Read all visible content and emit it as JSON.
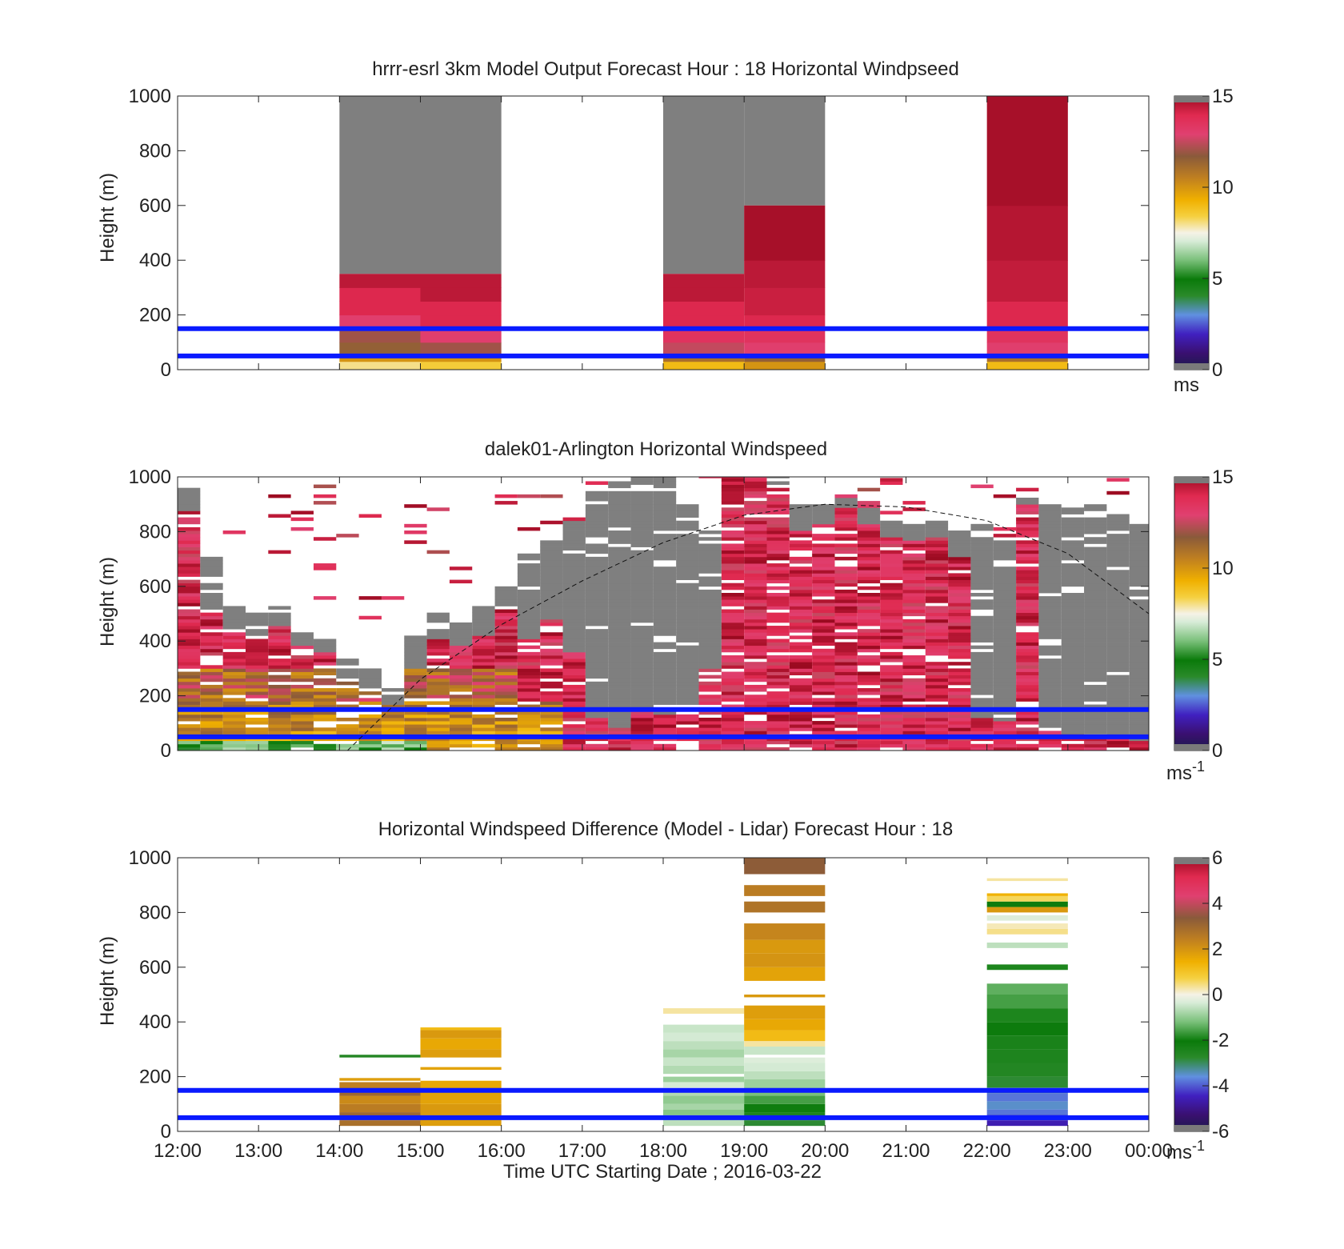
{
  "x_tick_labels": [
    "12:00",
    "13:00",
    "14:00",
    "15:00",
    "16:00",
    "17:00",
    "18:00",
    "19:00",
    "20:00",
    "21:00",
    "22:00",
    "23:00",
    "00:00"
  ],
  "x_axis_label": "Time UTC  Starting Date ; 2016-03-22",
  "chart_data": [
    {
      "type": "heatmap",
      "title": "hrrr-esrl 3km Model Output   Forecast Hour : 18 Horizontal Windpseed",
      "ylabel": "Height (m)",
      "ylim": [
        0,
        1000
      ],
      "y_ticks": [
        0,
        200,
        400,
        600,
        800,
        1000
      ],
      "colorbar": {
        "min": 0,
        "max": 15,
        "ticks": [
          0,
          5,
          10,
          15
        ],
        "unit": "ms"
      },
      "reference_lines_m": [
        50,
        150
      ],
      "columns": [
        {
          "x": [
            14,
            15
          ],
          "valid_top": 350,
          "profile": [
            [
              0,
              30,
              8
            ],
            [
              30,
              50,
              10
            ],
            [
              50,
              100,
              11.5
            ],
            [
              100,
              150,
              12
            ],
            [
              150,
              200,
              13
            ],
            [
              200,
              250,
              14
            ],
            [
              250,
              300,
              14
            ],
            [
              300,
              350,
              14.5
            ]
          ]
        },
        {
          "x": [
            15,
            16
          ],
          "valid_top": 350,
          "profile": [
            [
              0,
              30,
              8.5
            ],
            [
              30,
              50,
              10
            ],
            [
              50,
              100,
              12
            ],
            [
              100,
              150,
              13
            ],
            [
              150,
              200,
              14
            ],
            [
              200,
              250,
              14
            ],
            [
              250,
              300,
              14.5
            ],
            [
              300,
              350,
              14.5
            ]
          ]
        },
        {
          "x": [
            18,
            19
          ],
          "valid_top": 350,
          "profile": [
            [
              0,
              30,
              9
            ],
            [
              30,
              50,
              11
            ],
            [
              50,
              100,
              12.5
            ],
            [
              100,
              150,
              13.5
            ],
            [
              150,
              200,
              14
            ],
            [
              200,
              250,
              14
            ],
            [
              250,
              300,
              14.5
            ],
            [
              300,
              350,
              14.5
            ]
          ]
        },
        {
          "x": [
            19,
            20
          ],
          "valid_top": 600,
          "profile": [
            [
              0,
              30,
              10
            ],
            [
              30,
              60,
              11.5
            ],
            [
              60,
              100,
              13
            ],
            [
              100,
              150,
              13.5
            ],
            [
              150,
              200,
              14
            ],
            [
              200,
              300,
              14.3
            ],
            [
              300,
              400,
              14.5
            ],
            [
              400,
              600,
              14.8
            ]
          ]
        },
        {
          "x": [
            22,
            23
          ],
          "valid_top": 1000,
          "profile": [
            [
              0,
              30,
              9
            ],
            [
              30,
              60,
              11
            ],
            [
              60,
              100,
              13
            ],
            [
              100,
              150,
              13.5
            ],
            [
              150,
              250,
              14
            ],
            [
              250,
              400,
              14.4
            ],
            [
              400,
              600,
              14.6
            ],
            [
              600,
              1000,
              14.8
            ]
          ]
        }
      ]
    },
    {
      "type": "heatmap",
      "title": "dalek01-Arlington  Horizontal Windspeed",
      "ylabel": "Height (m)",
      "ylim": [
        0,
        1000
      ],
      "y_ticks": [
        0,
        200,
        400,
        600,
        800,
        1000
      ],
      "colorbar": {
        "min": 0,
        "max": 15,
        "ticks": [
          0,
          5,
          10,
          15
        ],
        "unit": "ms-1"
      },
      "reference_lines_m": [
        50,
        150
      ],
      "boundary_layer_curve": {
        "x": [
          14.1,
          15,
          16,
          17,
          18,
          19,
          20,
          21,
          22,
          23,
          24
        ],
        "y": [
          0,
          260,
          460,
          620,
          760,
          860,
          900,
          890,
          840,
          720,
          500
        ]
      },
      "columns": [
        {
          "x": 12.0,
          "vtop": 870,
          "gtop": 960
        },
        {
          "x": 12.28,
          "vtop": 500,
          "gtop": 700
        },
        {
          "x": 12.56,
          "vtop": 430,
          "gtop": 520
        },
        {
          "x": 12.84,
          "vtop": 400,
          "gtop": 500
        },
        {
          "x": 13.12,
          "vtop": 450,
          "gtop": 520
        },
        {
          "x": 13.4,
          "vtop": 380,
          "gtop": 430
        },
        {
          "x": 13.68,
          "vtop": 350,
          "gtop": 400
        },
        {
          "x": 13.96,
          "vtop": 250,
          "gtop": 330
        },
        {
          "x": 14.24,
          "vtop": 220,
          "gtop": 300
        },
        {
          "x": 14.52,
          "vtop": 160,
          "gtop": 220
        },
        {
          "x": 14.8,
          "vtop": 300,
          "gtop": 420
        },
        {
          "x": 15.08,
          "vtop": 400,
          "gtop": 500
        },
        {
          "x": 15.36,
          "vtop": 380,
          "gtop": 460
        },
        {
          "x": 15.64,
          "vtop": 420,
          "gtop": 520
        },
        {
          "x": 15.92,
          "vtop": 520,
          "gtop": 600
        },
        {
          "x": 16.2,
          "vtop": 400,
          "gtop": 720
        },
        {
          "x": 16.48,
          "vtop": 480,
          "gtop": 760
        },
        {
          "x": 16.76,
          "vtop": 360,
          "gtop": 840
        },
        {
          "x": 17.04,
          "vtop": 120,
          "gtop": 940
        },
        {
          "x": 17.32,
          "vtop": 80,
          "gtop": 980
        },
        {
          "x": 17.6,
          "vtop": 150,
          "gtop": 1000
        },
        {
          "x": 17.88,
          "vtop": 130,
          "gtop": 1000
        },
        {
          "x": 18.16,
          "vtop": 160,
          "gtop": 900
        },
        {
          "x": 18.44,
          "vtop": 300,
          "gtop": 800
        },
        {
          "x": 18.72,
          "vtop": 1000,
          "gtop": 1000
        },
        {
          "x": 19.0,
          "vtop": 1000,
          "gtop": 1000
        },
        {
          "x": 19.28,
          "vtop": 960,
          "gtop": 1000
        },
        {
          "x": 19.56,
          "vtop": 800,
          "gtop": 900
        },
        {
          "x": 19.84,
          "vtop": 820,
          "gtop": 900
        },
        {
          "x": 20.12,
          "vtop": 880,
          "gtop": 920
        },
        {
          "x": 20.4,
          "vtop": 820,
          "gtop": 880
        },
        {
          "x": 20.68,
          "vtop": 780,
          "gtop": 840
        },
        {
          "x": 20.96,
          "vtop": 760,
          "gtop": 820
        },
        {
          "x": 21.24,
          "vtop": 780,
          "gtop": 840
        },
        {
          "x": 21.52,
          "vtop": 700,
          "gtop": 800
        },
        {
          "x": 21.8,
          "vtop": 120,
          "gtop": 820
        },
        {
          "x": 22.08,
          "vtop": 100,
          "gtop": 760
        },
        {
          "x": 22.36,
          "vtop": 900,
          "gtop": 920
        },
        {
          "x": 22.64,
          "vtop": 80,
          "gtop": 900
        },
        {
          "x": 22.92,
          "vtop": 60,
          "gtop": 880
        },
        {
          "x": 23.2,
          "vtop": 50,
          "gtop": 900
        },
        {
          "x": 23.48,
          "vtop": 40,
          "gtop": 860
        },
        {
          "x": 23.76,
          "vtop": 30,
          "gtop": 820
        }
      ]
    },
    {
      "type": "heatmap",
      "title": "Horizontal Windspeed Difference (Model - Lidar) Forecast Hour : 18",
      "ylabel": "Height (m)",
      "ylim": [
        0,
        1000
      ],
      "y_ticks": [
        0,
        200,
        400,
        600,
        800,
        1000
      ],
      "colorbar": {
        "min": -6,
        "max": 6,
        "ticks": [
          -6,
          -4,
          -2,
          0,
          2,
          4,
          6
        ],
        "unit": "ms-1"
      },
      "reference_lines_m": [
        50,
        150
      ],
      "segments": [
        {
          "x": [
            14,
            15
          ],
          "bands": [
            [
              20,
              40,
              2.8
            ],
            [
              40,
              70,
              3
            ],
            [
              70,
              100,
              2.5
            ],
            [
              100,
              130,
              2.2
            ],
            [
              130,
              150,
              3
            ],
            [
              150,
              180,
              2.4
            ],
            [
              185,
              195,
              1.8
            ],
            [
              270,
              280,
              -2.6
            ]
          ]
        },
        {
          "x": [
            15,
            16
          ],
          "bands": [
            [
              20,
              60,
              1.8
            ],
            [
              60,
              100,
              1.9
            ],
            [
              100,
              150,
              1.7
            ],
            [
              150,
              185,
              1.6
            ],
            [
              225,
              235,
              1.7
            ],
            [
              270,
              300,
              1.8
            ],
            [
              300,
              340,
              1.6
            ],
            [
              340,
              370,
              1.9
            ],
            [
              370,
              380,
              1.2
            ]
          ]
        },
        {
          "x": [
            18,
            19
          ],
          "bands": [
            [
              20,
              40,
              -0.6
            ],
            [
              40,
              60,
              -0.9
            ],
            [
              60,
              80,
              -1.1
            ],
            [
              80,
              100,
              -0.8
            ],
            [
              100,
              130,
              -1.0
            ],
            [
              130,
              150,
              -0.7
            ],
            [
              160,
              180,
              -0.4
            ],
            [
              180,
              200,
              -0.9
            ],
            [
              210,
              240,
              -0.7
            ],
            [
              240,
              270,
              -0.5
            ],
            [
              270,
              300,
              -0.8
            ],
            [
              300,
              330,
              -0.6
            ],
            [
              330,
              360,
              -0.4
            ],
            [
              360,
              390,
              -0.5
            ],
            [
              430,
              450,
              0.3
            ]
          ]
        },
        {
          "x": [
            19,
            20
          ],
          "bands": [
            [
              20,
              40,
              -2.8
            ],
            [
              40,
              70,
              -2.5
            ],
            [
              70,
              100,
              -2.0
            ],
            [
              100,
              130,
              -1.6
            ],
            [
              130,
              160,
              -1.2
            ],
            [
              160,
              190,
              -0.9
            ],
            [
              190,
              220,
              -0.6
            ],
            [
              220,
              250,
              -0.4
            ],
            [
              250,
              270,
              -0.3
            ],
            [
              280,
              310,
              -0.5
            ],
            [
              310,
              330,
              0.3
            ],
            [
              330,
              370,
              1.2
            ],
            [
              370,
              410,
              1.6
            ],
            [
              410,
              460,
              1.8
            ],
            [
              490,
              500,
              1.9
            ],
            [
              550,
              600,
              1.7
            ],
            [
              600,
              650,
              2.0
            ],
            [
              650,
              700,
              1.9
            ],
            [
              700,
              760,
              2.3
            ],
            [
              800,
              840,
              2.7
            ],
            [
              860,
              900,
              2.5
            ],
            [
              940,
              1000,
              3.3
            ]
          ]
        },
        {
          "x": [
            22,
            23
          ],
          "bands": [
            [
              20,
              40,
              -4.6
            ],
            [
              40,
              60,
              -4.3
            ],
            [
              60,
              80,
              -3.8
            ],
            [
              80,
              110,
              -3.5
            ],
            [
              110,
              140,
              -3.8
            ],
            [
              140,
              160,
              -3.2
            ],
            [
              160,
              200,
              -2.8
            ],
            [
              200,
              250,
              -2.6
            ],
            [
              250,
              300,
              -2.5
            ],
            [
              300,
              350,
              -2.4
            ],
            [
              350,
              400,
              -2.1
            ],
            [
              400,
              450,
              -1.9
            ],
            [
              450,
              500,
              -1.6
            ],
            [
              500,
              540,
              -1.4
            ],
            [
              590,
              610,
              -1.9
            ],
            [
              670,
              690,
              -0.6
            ],
            [
              720,
              740,
              0.4
            ],
            [
              740,
              760,
              0.2
            ],
            [
              770,
              790,
              -0.3
            ],
            [
              800,
              820,
              1.9
            ],
            [
              820,
              840,
              -2.1
            ],
            [
              840,
              860,
              0.6
            ],
            [
              860,
              870,
              1.4
            ],
            [
              915,
              925,
              0.3
            ]
          ]
        }
      ]
    }
  ]
}
